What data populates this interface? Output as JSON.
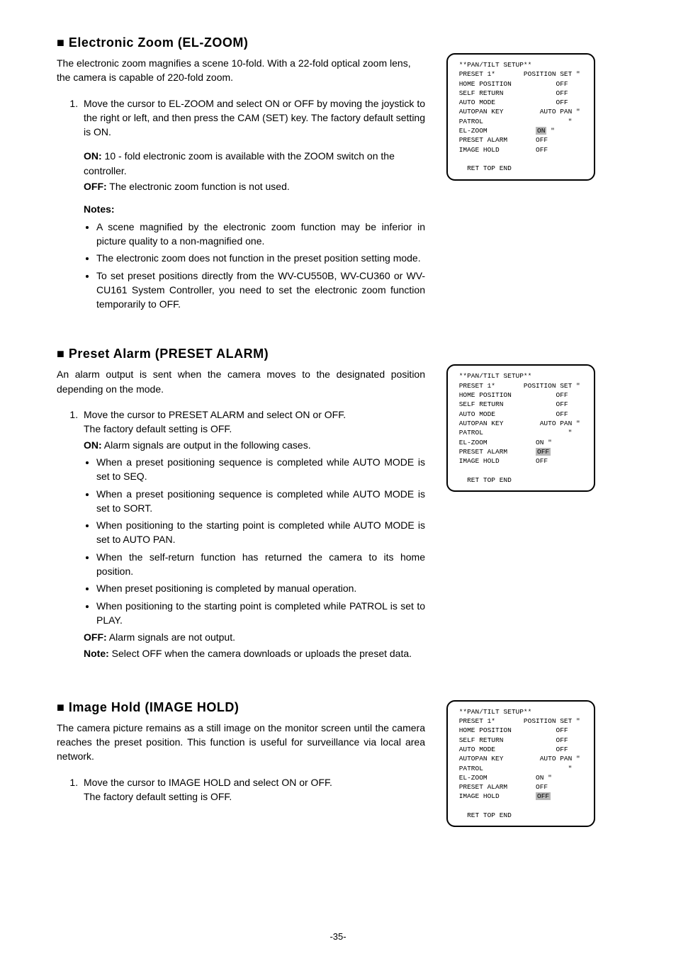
{
  "typography": {
    "body_font": "Arial, Helvetica, sans-serif",
    "mono_font": "Courier New, monospace",
    "title_size_pt": 18,
    "body_size_pt": 14,
    "menu_size_pt": 9.5,
    "highlight_color": "#b7b7b7",
    "border_color": "#000000",
    "text_color": "#000000",
    "bg_color": "#ffffff"
  },
  "section1": {
    "title": "■ Electronic Zoom (EL-ZOOM)",
    "intro": "The electronic zoom magnifies a scene 10-fold. With a 22-fold optical zoom lens, the camera is capable of 220-fold zoom.",
    "step1": "Move the cursor to EL-ZOOM and select ON or OFF by moving the joystick to the right or left, and then press the CAM (SET) key. The factory default setting is ON.",
    "on_label": "ON:",
    "on_text": " 10 - fold electronic zoom is available with the ZOOM switch on the controller.",
    "off_label": "OFF:",
    "off_text": " The electronic zoom function is not used.",
    "notes_label": "Notes:",
    "note1": "A scene magnified by the electronic zoom function may be inferior in picture quality to a non-magnified one.",
    "note2": "The electronic zoom does not function in the preset position setting mode.",
    "note3": "To set preset positions directly from the WV-CU550B, WV-CU360 or WV-CU161 System Controller, you need to set the electronic zoom function temporarily to OFF.",
    "menu": {
      "title": " **PAN/TILT SETUP**",
      "lines": [
        " PRESET 1*       POSITION SET \"",
        " HOME POSITION           OFF",
        " SELF RETURN             OFF",
        " AUTO MODE               OFF",
        " AUTOPAN KEY         AUTO PAN \"",
        " PATROL                     \"",
        " EL-ZOOM            ON \"",
        " PRESET ALARM       OFF",
        " IMAGE HOLD         OFF"
      ],
      "ret": "   RET TOP END",
      "highlight": "ON",
      "highlight_line_index": 6,
      "highlight_suffix": " \""
    }
  },
  "section2": {
    "title": "■ Preset Alarm (PRESET ALARM)",
    "intro": "An alarm output is sent when the camera moves to the designated position depending on the mode.",
    "step1_a": "Move the cursor to PRESET ALARM and select ON or OFF.",
    "step1_b": "The factory default setting is OFF.",
    "on_label": "ON:",
    "on_text": " Alarm signals are output in the following cases.",
    "b1": "When a preset positioning sequence is completed while AUTO MODE is set to SEQ.",
    "b2": "When a preset positioning sequence is completed while AUTO MODE is set to SORT.",
    "b3": "When positioning to the starting point is completed while AUTO MODE is set to AUTO PAN.",
    "b4": "When the self-return function has returned the camera to its home position.",
    "b5": "When preset positioning is completed by manual operation.",
    "b6": "When positioning to the starting point is completed while PATROL is set to PLAY.",
    "off_label": "OFF:",
    "off_text": " Alarm signals are not output.",
    "note_label": "Note:",
    "note_text": " Select OFF when the camera downloads or uploads the preset data.",
    "menu": {
      "title": " **PAN/TILT SETUP**",
      "lines": [
        " PRESET 1*       POSITION SET \"",
        " HOME POSITION           OFF",
        " SELF RETURN             OFF",
        " AUTO MODE               OFF",
        " AUTOPAN KEY         AUTO PAN \"",
        " PATROL                     \"",
        " EL-ZOOM            ON \"",
        " PRESET ALARM       OFF",
        " IMAGE HOLD         OFF"
      ],
      "ret": "   RET TOP END",
      "highlight": "OFF",
      "highlight_line_index": 7
    }
  },
  "section3": {
    "title": "■ Image Hold (IMAGE HOLD)",
    "intro": "The camera picture remains as a still image on the monitor screen until the camera reaches the preset position. This function is useful for surveillance via local area network.",
    "step1_a": "Move the cursor to IMAGE HOLD and select ON or OFF.",
    "step1_b": "The factory default setting is OFF.",
    "menu": {
      "title": " **PAN/TILT SETUP**",
      "lines": [
        " PRESET 1*       POSITION SET \"",
        " HOME POSITION           OFF",
        " SELF RETURN             OFF",
        " AUTO MODE               OFF",
        " AUTOPAN KEY         AUTO PAN \"",
        " PATROL                     \"",
        " EL-ZOOM            ON \"",
        " PRESET ALARM       OFF",
        " IMAGE HOLD         OFF"
      ],
      "ret": "   RET TOP END",
      "highlight": "OFF",
      "highlight_line_index": 8
    }
  },
  "page_number": "-35-"
}
